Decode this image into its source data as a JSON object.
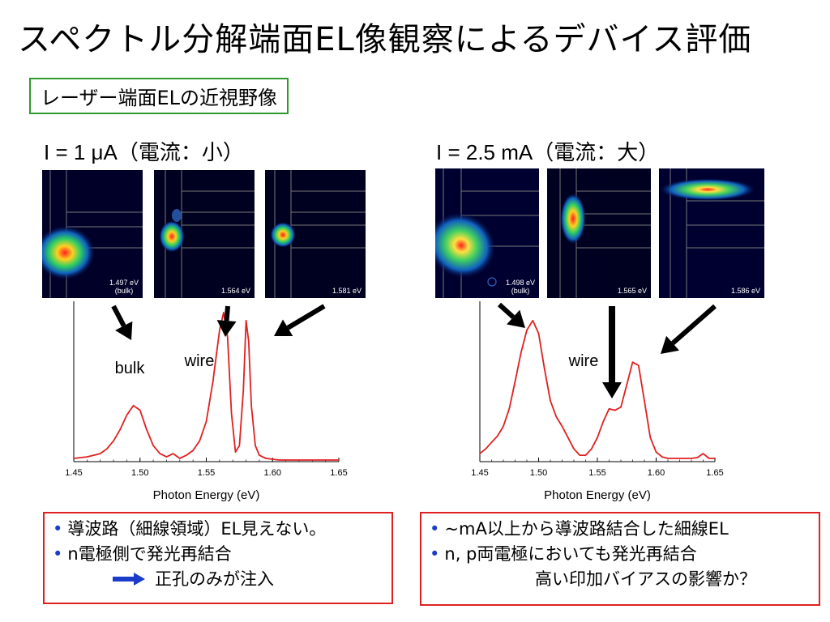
{
  "title": "スペクトル分解端面EL像観察によるデバイス評価",
  "subtitle": "レーザー端面ELの近視野像",
  "left": {
    "condition": "I = 1 μA（電流：小）",
    "images": [
      {
        "label": "1.497 eV\n(bulk)"
      },
      {
        "label": "1.564 eV"
      },
      {
        "label": "1.581 eV"
      }
    ],
    "notes": [
      "導波路（細線領域）EL見えない。",
      "n電極側で発光再結合",
      "正孔のみが注入"
    ]
  },
  "right": {
    "condition": "I = 2.5 mA（電流：大）",
    "images": [
      {
        "label": "1.498 eV\n(bulk)"
      },
      {
        "label": "1.565 eV"
      },
      {
        "label": "1.586 eV"
      }
    ],
    "notes": [
      "~mA以上から導波路結合した細線EL",
      "n, p両電極においても発光再結合",
      "高い印加バイアスの影響か？"
    ]
  },
  "colors": {
    "curve": "#e02020",
    "note_border": "#e02020",
    "subtitle_border": "#2e9a2e",
    "bullet": "#1a3cc8",
    "arrow_blue": "#1a3cc8"
  },
  "chart_data": [
    {
      "type": "line",
      "xlabel": "Photon Energy (eV)",
      "ylabel": "",
      "xlim": [
        1.45,
        1.65
      ],
      "xticks": [
        "1.45",
        "1.50",
        "1.55",
        "1.60",
        "1.65"
      ],
      "ylim": [
        0,
        1
      ],
      "annotations": [
        "bulk",
        "wire"
      ],
      "series": [
        {
          "x": [
            1.45,
            1.46,
            1.47,
            1.475,
            1.48,
            1.485,
            1.49,
            1.495,
            1.5,
            1.505,
            1.51,
            1.515,
            1.52,
            1.525,
            1.53,
            1.535,
            1.54,
            1.545,
            1.55,
            1.555,
            1.56,
            1.563,
            1.566,
            1.569,
            1.572,
            1.575,
            1.578,
            1.58,
            1.582,
            1.584,
            1.587,
            1.59,
            1.595,
            1.6,
            1.605,
            1.61,
            1.62,
            1.63,
            1.64,
            1.65
          ],
          "y": [
            0.02,
            0.03,
            0.05,
            0.08,
            0.13,
            0.2,
            0.29,
            0.35,
            0.32,
            0.2,
            0.1,
            0.05,
            0.03,
            0.05,
            0.02,
            0.04,
            0.07,
            0.13,
            0.25,
            0.5,
            0.82,
            0.93,
            0.78,
            0.3,
            0.06,
            0.1,
            0.45,
            0.88,
            0.75,
            0.35,
            0.1,
            0.04,
            0.02,
            0.015,
            0.01,
            0.01,
            0.01,
            0.01,
            0.01,
            0.01
          ]
        }
      ]
    },
    {
      "type": "line",
      "xlabel": "Photon Energy (eV)",
      "ylabel": "",
      "xlim": [
        1.45,
        1.65
      ],
      "xticks": [
        "1.45",
        "1.50",
        "1.55",
        "1.60",
        "1.65"
      ],
      "ylim": [
        0,
        1
      ],
      "annotations": [
        "wire"
      ],
      "series": [
        {
          "x": [
            1.45,
            1.455,
            1.46,
            1.465,
            1.47,
            1.475,
            1.48,
            1.485,
            1.49,
            1.495,
            1.5,
            1.505,
            1.51,
            1.515,
            1.52,
            1.525,
            1.53,
            1.535,
            1.54,
            1.545,
            1.55,
            1.555,
            1.56,
            1.565,
            1.57,
            1.575,
            1.58,
            1.585,
            1.59,
            1.595,
            1.6,
            1.605,
            1.61,
            1.615,
            1.62,
            1.63,
            1.635,
            1.64,
            1.645,
            1.65
          ],
          "y": [
            0.05,
            0.08,
            0.12,
            0.16,
            0.22,
            0.33,
            0.5,
            0.68,
            0.82,
            0.88,
            0.8,
            0.58,
            0.38,
            0.28,
            0.22,
            0.15,
            0.08,
            0.04,
            0.04,
            0.08,
            0.15,
            0.25,
            0.33,
            0.32,
            0.34,
            0.48,
            0.62,
            0.6,
            0.38,
            0.15,
            0.06,
            0.03,
            0.02,
            0.02,
            0.02,
            0.02,
            0.025,
            0.05,
            0.02,
            0.02
          ]
        }
      ]
    }
  ]
}
